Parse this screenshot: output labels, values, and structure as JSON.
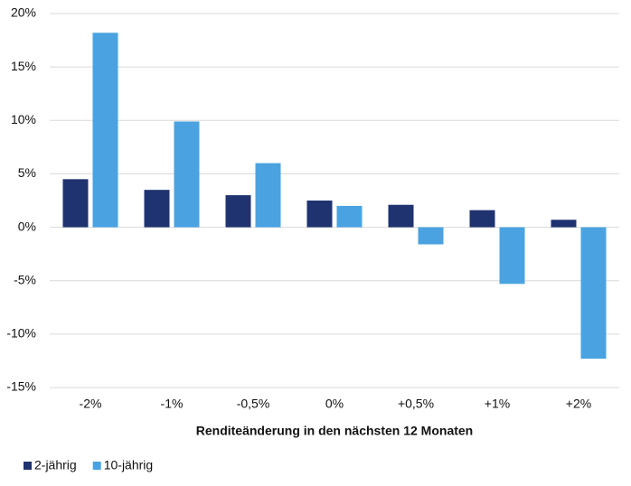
{
  "chart_data": {
    "type": "bar",
    "xlabel": "Renditeänderung in den nächsten 12 Monaten",
    "categories": [
      "-2%",
      "-1%",
      "-0,5%",
      "0%",
      "+0,5%",
      "+1%",
      "+2%"
    ],
    "series": [
      {
        "name": "2-jährig",
        "color": "#1f3370",
        "values": [
          4.5,
          3.5,
          3.0,
          2.5,
          2.1,
          1.6,
          0.7
        ]
      },
      {
        "name": "10-jährig",
        "color": "#4aa3e0",
        "values": [
          18.2,
          9.9,
          6.0,
          2.0,
          -1.6,
          -5.3,
          -12.3
        ]
      }
    ],
    "ylim": [
      -15,
      20
    ],
    "yticks": [
      {
        "value": -15,
        "label": "-15%"
      },
      {
        "value": -10,
        "label": "-10%"
      },
      {
        "value": -5,
        "label": "-5%"
      },
      {
        "value": 0,
        "label": "0%"
      },
      {
        "value": 5,
        "label": "5%"
      },
      {
        "value": 10,
        "label": "10%"
      },
      {
        "value": 15,
        "label": "15%"
      },
      {
        "value": 20,
        "label": "20%"
      }
    ],
    "grid": true,
    "legend": "bottom-left"
  }
}
